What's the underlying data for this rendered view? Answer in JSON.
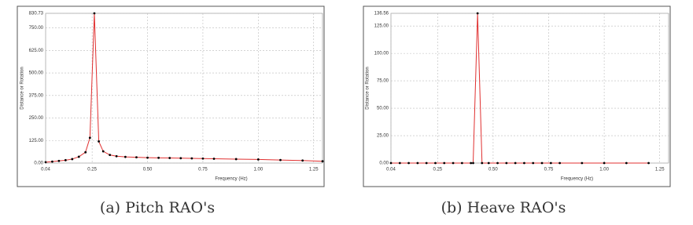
{
  "chart_data": [
    {
      "type": "line",
      "xlabel": "Frequency (Hz)",
      "ylabel": "Distance or Rotation",
      "caption": "(a) Pitch RAO's",
      "color": "#e03030",
      "marker_color": "#000000",
      "x": [
        0.04,
        0.07,
        0.1,
        0.13,
        0.16,
        0.19,
        0.22,
        0.24,
        0.26,
        0.28,
        0.3,
        0.33,
        0.36,
        0.4,
        0.45,
        0.5,
        0.55,
        0.6,
        0.65,
        0.7,
        0.75,
        0.8,
        0.9,
        1.0,
        1.1,
        1.2,
        1.29
      ],
      "values": [
        5,
        8,
        12,
        16,
        22,
        35,
        60,
        140,
        830.73,
        120,
        65,
        45,
        38,
        34,
        32,
        30,
        29,
        28,
        27,
        26,
        25,
        24,
        22,
        20,
        17,
        14,
        10
      ],
      "xlim": [
        0.04,
        1.29
      ],
      "xticks": [
        0.04,
        0.25,
        {
          "value": 0.5,
          "label": "0.50"
        },
        0.75,
        {
          "value": 1,
          "label": "1.00"
        },
        1.25
      ],
      "ylim": [
        0,
        830.73
      ],
      "yticks": [
        {
          "value": 0,
          "label": "0.00"
        },
        {
          "value": 125,
          "label": "125.00"
        },
        {
          "value": 250,
          "label": "250.00"
        },
        {
          "value": 375,
          "label": "375.00"
        },
        {
          "value": 500,
          "label": "500.00"
        },
        {
          "value": 625,
          "label": "625.00"
        },
        {
          "value": 750,
          "label": "750.00"
        },
        830.73
      ],
      "grid": true
    },
    {
      "type": "line",
      "xlabel": "Frequency (Hz)",
      "ylabel": "Distance or Rotation",
      "caption": "(b) Heave RAO's",
      "color": "#e03030",
      "marker_color": "#000000",
      "x": [
        0.04,
        0.08,
        0.12,
        0.16,
        0.2,
        0.24,
        0.28,
        0.32,
        0.36,
        0.4,
        0.41,
        0.43,
        0.45,
        0.48,
        0.52,
        0.56,
        0.6,
        0.64,
        0.68,
        0.72,
        0.76,
        0.8,
        0.9,
        1.0,
        1.1,
        1.2
      ],
      "values": [
        0,
        0,
        0,
        0,
        0,
        0,
        0,
        0,
        0,
        0,
        0,
        136.56,
        0,
        0,
        0,
        0,
        0,
        0,
        0,
        0,
        0,
        0,
        0,
        0,
        0,
        0
      ],
      "xlim": [
        0.04,
        1.29
      ],
      "xticks": [
        0.04,
        0.25,
        {
          "value": 0.5,
          "label": "0.50"
        },
        0.75,
        {
          "value": 1,
          "label": "1.00"
        },
        1.25
      ],
      "ylim": [
        0,
        136.56
      ],
      "yticks": [
        {
          "value": 0,
          "label": "0.00"
        },
        {
          "value": 25,
          "label": "25.00"
        },
        {
          "value": 50,
          "label": "50.00"
        },
        {
          "value": 75,
          "label": "75.00"
        },
        {
          "value": 100,
          "label": "100.00"
        },
        {
          "value": 125,
          "label": "125.00"
        },
        136.56
      ],
      "grid": true
    }
  ]
}
